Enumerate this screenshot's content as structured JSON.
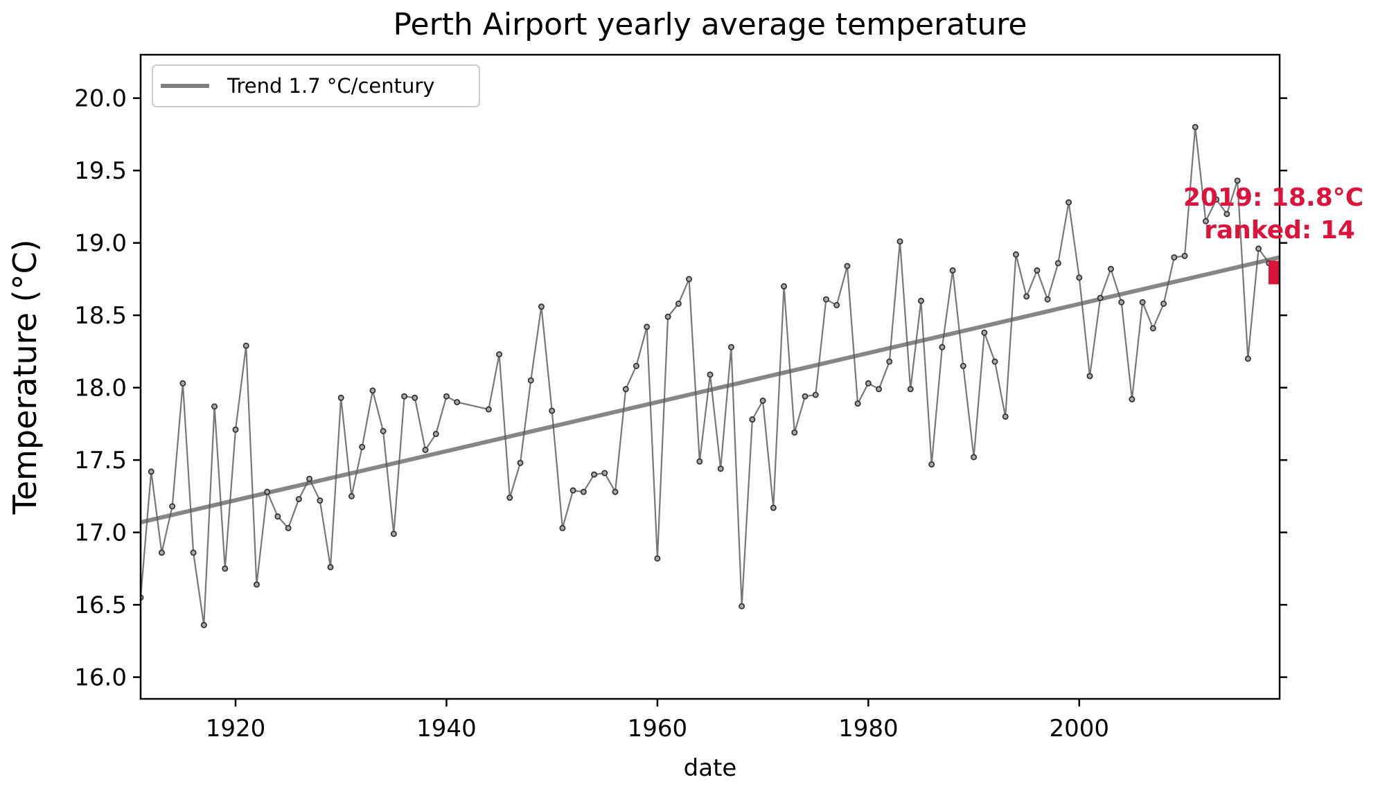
{
  "chart_data": {
    "type": "line",
    "title": "Perth Airport yearly average temperature",
    "xlabel": "date",
    "ylabel": "Temperature (°C)",
    "xlim": [
      1911,
      2019
    ],
    "ylim": [
      15.85,
      20.3
    ],
    "x_ticks": [
      1920,
      1940,
      1960,
      1980,
      2000
    ],
    "y_ticks": [
      16.0,
      16.5,
      17.0,
      17.5,
      18.0,
      18.5,
      19.0,
      19.5,
      20.0
    ],
    "y_tick_labels": [
      "16.0",
      "16.5",
      "17.0",
      "17.5",
      "18.0",
      "18.5",
      "19.0",
      "19.5",
      "20.0"
    ],
    "grid": false,
    "legend": {
      "placement": "top-left",
      "entries": [
        "Trend 1.7 °C/century"
      ]
    },
    "series": [
      {
        "values": [
          [
            1911,
            16.55
          ],
          [
            1912,
            17.42
          ],
          [
            1913,
            16.86
          ],
          [
            1914,
            17.18
          ],
          [
            1915,
            18.03
          ],
          [
            1916,
            16.86
          ],
          [
            1917,
            16.36
          ],
          [
            1918,
            17.87
          ],
          [
            1919,
            16.75
          ],
          [
            1920,
            17.71
          ],
          [
            1921,
            18.29
          ],
          [
            1922,
            16.64
          ],
          [
            1923,
            17.28
          ],
          [
            1924,
            17.11
          ],
          [
            1925,
            17.03
          ],
          [
            1926,
            17.23
          ],
          [
            1927,
            17.37
          ],
          [
            1928,
            17.22
          ],
          [
            1929,
            16.76
          ],
          [
            1930,
            17.93
          ],
          [
            1931,
            17.25
          ],
          [
            1932,
            17.59
          ],
          [
            1933,
            17.98
          ],
          [
            1934,
            17.7
          ],
          [
            1935,
            16.99
          ],
          [
            1936,
            17.94
          ],
          [
            1937,
            17.93
          ],
          [
            1938,
            17.57
          ],
          [
            1939,
            17.68
          ],
          [
            1940,
            17.94
          ],
          [
            1941,
            17.9
          ],
          [
            1944,
            17.85
          ],
          [
            1945,
            18.23
          ],
          [
            1946,
            17.24
          ],
          [
            1947,
            17.48
          ],
          [
            1948,
            18.05
          ],
          [
            1949,
            18.56
          ],
          [
            1950,
            17.84
          ],
          [
            1951,
            17.03
          ],
          [
            1952,
            17.29
          ],
          [
            1953,
            17.28
          ],
          [
            1954,
            17.4
          ],
          [
            1955,
            17.41
          ],
          [
            1956,
            17.28
          ],
          [
            1957,
            17.99
          ],
          [
            1958,
            18.15
          ],
          [
            1959,
            18.42
          ],
          [
            1960,
            16.82
          ],
          [
            1961,
            18.49
          ],
          [
            1962,
            18.58
          ],
          [
            1963,
            18.75
          ],
          [
            1964,
            17.49
          ],
          [
            1965,
            18.09
          ],
          [
            1966,
            17.44
          ],
          [
            1967,
            18.28
          ],
          [
            1968,
            16.49
          ],
          [
            1969,
            17.78
          ],
          [
            1970,
            17.91
          ],
          [
            1971,
            17.17
          ],
          [
            1972,
            18.7
          ],
          [
            1973,
            17.69
          ],
          [
            1974,
            17.94
          ],
          [
            1975,
            17.95
          ],
          [
            1976,
            18.61
          ],
          [
            1977,
            18.57
          ],
          [
            1978,
            18.84
          ],
          [
            1979,
            17.89
          ],
          [
            1980,
            18.03
          ],
          [
            1981,
            17.99
          ],
          [
            1982,
            18.18
          ],
          [
            1983,
            19.01
          ],
          [
            1984,
            17.99
          ],
          [
            1985,
            18.6
          ],
          [
            1986,
            17.47
          ],
          [
            1987,
            18.28
          ],
          [
            1988,
            18.81
          ],
          [
            1989,
            18.15
          ],
          [
            1990,
            17.52
          ],
          [
            1991,
            18.38
          ],
          [
            1992,
            18.18
          ],
          [
            1993,
            17.8
          ],
          [
            1994,
            18.92
          ],
          [
            1995,
            18.63
          ],
          [
            1996,
            18.81
          ],
          [
            1997,
            18.61
          ],
          [
            1998,
            18.86
          ],
          [
            1999,
            19.28
          ],
          [
            2000,
            18.76
          ],
          [
            2001,
            18.08
          ],
          [
            2002,
            18.62
          ],
          [
            2003,
            18.82
          ],
          [
            2004,
            18.59
          ],
          [
            2005,
            17.92
          ],
          [
            2006,
            18.59
          ],
          [
            2007,
            18.41
          ],
          [
            2008,
            18.58
          ],
          [
            2009,
            18.9
          ],
          [
            2010,
            18.91
          ],
          [
            2011,
            19.8
          ],
          [
            2012,
            19.15
          ],
          [
            2013,
            19.3
          ],
          [
            2014,
            19.2
          ],
          [
            2015,
            19.43
          ],
          [
            2016,
            18.2
          ],
          [
            2017,
            18.96
          ],
          [
            2018,
            18.86
          ],
          [
            2019,
            18.8
          ]
        ],
        "color": "#555555"
      },
      {
        "name": "Trend 1.7 °C/century",
        "values": [
          [
            1911,
            17.07
          ],
          [
            2019,
            18.9
          ]
        ],
        "color": "#7f7f7f"
      }
    ],
    "annotation": {
      "lines": [
        "2019: 18.8°C",
        "ranked: 14"
      ],
      "x": 2019,
      "y": 18.8,
      "color": "#dc143c"
    }
  }
}
